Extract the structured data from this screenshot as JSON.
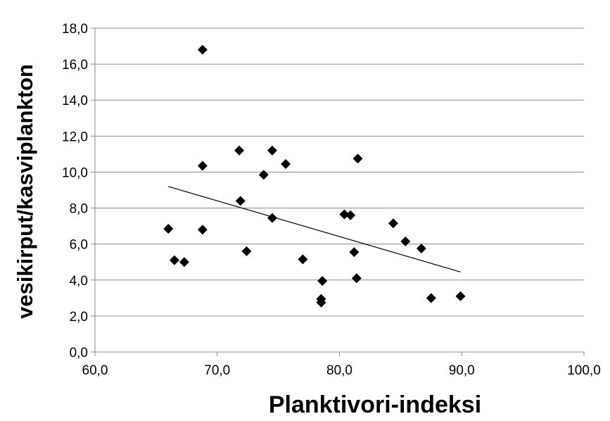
{
  "chart_data": {
    "type": "scatter",
    "title": "",
    "xlabel": "Planktivori-indeksi",
    "ylabel": "vesikirput/kasviplankton",
    "xlim": [
      60,
      100
    ],
    "ylim": [
      0,
      18
    ],
    "x_ticks": [
      "60,0",
      "70,0",
      "80,0",
      "90,0",
      "100,0"
    ],
    "y_ticks": [
      "0,0",
      "2,0",
      "4,0",
      "6,0",
      "8,0",
      "10,0",
      "12,0",
      "14,0",
      "16,0",
      "18,0"
    ],
    "grid": "horizontal",
    "legend": "none",
    "marker_color": "#000000",
    "points": [
      {
        "x": 66.0,
        "y": 6.85
      },
      {
        "x": 66.5,
        "y": 5.1
      },
      {
        "x": 67.3,
        "y": 5.0
      },
      {
        "x": 68.8,
        "y": 16.8
      },
      {
        "x": 68.8,
        "y": 10.35
      },
      {
        "x": 68.8,
        "y": 6.8
      },
      {
        "x": 71.8,
        "y": 11.2
      },
      {
        "x": 71.9,
        "y": 8.4
      },
      {
        "x": 72.4,
        "y": 5.6
      },
      {
        "x": 73.8,
        "y": 9.85
      },
      {
        "x": 74.5,
        "y": 11.2
      },
      {
        "x": 74.5,
        "y": 7.45
      },
      {
        "x": 75.6,
        "y": 10.45
      },
      {
        "x": 77.0,
        "y": 5.15
      },
      {
        "x": 78.6,
        "y": 3.95
      },
      {
        "x": 78.5,
        "y": 2.95
      },
      {
        "x": 78.5,
        "y": 2.75
      },
      {
        "x": 80.4,
        "y": 7.65
      },
      {
        "x": 80.9,
        "y": 7.6
      },
      {
        "x": 81.2,
        "y": 5.55
      },
      {
        "x": 81.4,
        "y": 4.1
      },
      {
        "x": 81.5,
        "y": 10.75
      },
      {
        "x": 84.4,
        "y": 7.15
      },
      {
        "x": 85.4,
        "y": 6.15
      },
      {
        "x": 86.7,
        "y": 5.75
      },
      {
        "x": 87.5,
        "y": 3.0
      },
      {
        "x": 89.9,
        "y": 3.1
      }
    ],
    "trendline": {
      "type": "linear",
      "x": [
        66.0,
        89.9
      ],
      "y": [
        9.2,
        4.45
      ]
    }
  }
}
